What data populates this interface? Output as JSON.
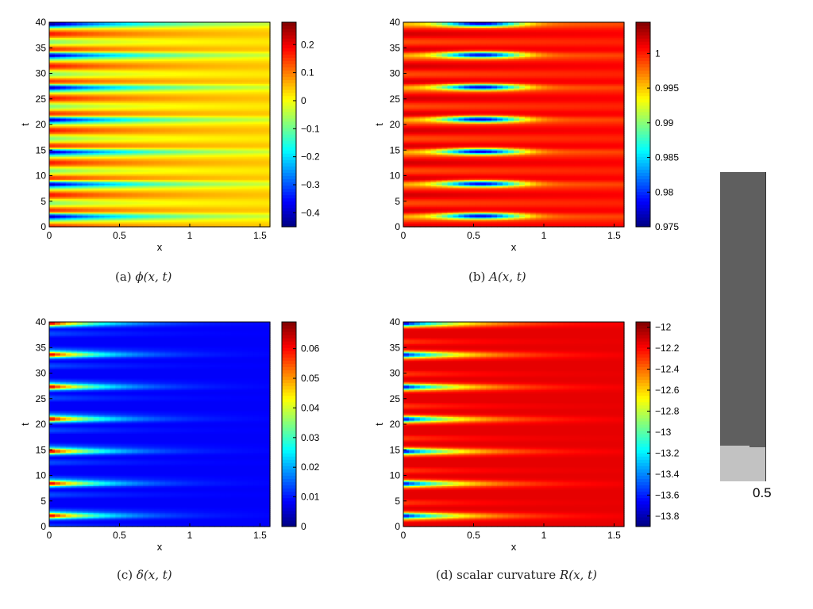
{
  "chart_data": [
    {
      "id": "a",
      "type": "heatmap",
      "caption_prefix": "(a) ",
      "caption_math": "ϕ(x, t)",
      "xlabel": "x",
      "ylabel": "t",
      "xlim": [
        0,
        1.5708
      ],
      "ylim": [
        0,
        40
      ],
      "xticks": [
        0,
        0.5,
        1,
        1.5
      ],
      "yticks": [
        0,
        5,
        10,
        15,
        20,
        25,
        30,
        35,
        40
      ],
      "xtick_labels": [
        "0",
        "0.5",
        "1",
        "1.5"
      ],
      "ytick_labels": [
        "0",
        "5",
        "10",
        "15",
        "20",
        "25",
        "30",
        "35",
        "40"
      ],
      "clim": [
        -0.45,
        0.28
      ],
      "colorbar_ticks": [
        0.2,
        0.1,
        0,
        -0.1,
        -0.2,
        -0.3,
        -0.4
      ],
      "colorbar_labels": [
        "0.2",
        "0.1",
        "0",
        "−0.1",
        "−0.2",
        "−0.3",
        "−0.4"
      ],
      "colormap": "jet",
      "pattern": "phi",
      "pulse_times": [
        2.2,
        8.5,
        14.8,
        21.1,
        27.4,
        33.7,
        39.8
      ]
    },
    {
      "id": "b",
      "type": "heatmap",
      "caption_prefix": "(b) ",
      "caption_math": "A(x, t)",
      "xlabel": "x",
      "ylabel": "t",
      "xlim": [
        0,
        1.5708
      ],
      "ylim": [
        0,
        40
      ],
      "xticks": [
        0,
        0.5,
        1,
        1.5
      ],
      "yticks": [
        0,
        5,
        10,
        15,
        20,
        25,
        30,
        35,
        40
      ],
      "xtick_labels": [
        "0",
        "0.5",
        "1",
        "1.5"
      ],
      "ytick_labels": [
        "0",
        "5",
        "10",
        "15",
        "20",
        "25",
        "30",
        "35",
        "40"
      ],
      "clim": [
        0.975,
        1.0045
      ],
      "colorbar_ticks": [
        1,
        0.995,
        0.99,
        0.985,
        0.98,
        0.975
      ],
      "colorbar_labels": [
        "1",
        "0.995",
        "0.99",
        "0.985",
        "0.98",
        "0.975"
      ],
      "colormap": "jet",
      "pattern": "A",
      "pulse_times": [
        2.2,
        8.5,
        14.8,
        21.1,
        27.4,
        33.7,
        39.8
      ]
    },
    {
      "id": "c",
      "type": "heatmap",
      "caption_prefix": "(c) ",
      "caption_math": "δ(x, t)",
      "xlabel": "x",
      "ylabel": "t",
      "xlim": [
        0,
        1.5708
      ],
      "ylim": [
        0,
        40
      ],
      "xticks": [
        0,
        0.5,
        1,
        1.5
      ],
      "yticks": [
        0,
        5,
        10,
        15,
        20,
        25,
        30,
        35,
        40
      ],
      "xtick_labels": [
        "0",
        "0.5",
        "1",
        "1.5"
      ],
      "ytick_labels": [
        "0",
        "5",
        "10",
        "15",
        "20",
        "25",
        "30",
        "35",
        "40"
      ],
      "clim": [
        0,
        0.069
      ],
      "colorbar_ticks": [
        0.06,
        0.05,
        0.04,
        0.03,
        0.02,
        0.01,
        0
      ],
      "colorbar_labels": [
        "0.06",
        "0.05",
        "0.04",
        "0.03",
        "0.02",
        "0.01",
        "0"
      ],
      "colormap": "jet",
      "pattern": "delta",
      "pulse_times": [
        2.2,
        8.5,
        14.8,
        21.1,
        27.4,
        33.7,
        39.8
      ]
    },
    {
      "id": "d",
      "type": "heatmap",
      "caption_prefix": "(d) scalar curvature ",
      "caption_math": "R(x, t)",
      "xlabel": "x",
      "ylabel": "t",
      "xlim": [
        0,
        1.5708
      ],
      "ylim": [
        0,
        40
      ],
      "xticks": [
        0,
        0.5,
        1,
        1.5
      ],
      "yticks": [
        0,
        5,
        10,
        15,
        20,
        25,
        30,
        35,
        40
      ],
      "xtick_labels": [
        "0",
        "0.5",
        "1",
        "1.5"
      ],
      "ytick_labels": [
        "0",
        "5",
        "10",
        "15",
        "20",
        "25",
        "30",
        "35",
        "40"
      ],
      "clim": [
        -13.9,
        -11.95
      ],
      "colorbar_ticks": [
        -12,
        -12.2,
        -12.4,
        -12.6,
        -12.8,
        -13,
        -13.2,
        -13.4,
        -13.6,
        -13.8
      ],
      "colorbar_labels": [
        "−12",
        "−12.2",
        "−12.4",
        "−12.6",
        "−12.8",
        "−13",
        "−13.2",
        "−13.4",
        "−13.6",
        "−13.8"
      ],
      "colormap": "jet",
      "pattern": "R",
      "pulse_times": [
        2.2,
        8.5,
        14.8,
        21.1,
        27.4,
        33.7,
        39.8
      ]
    }
  ],
  "side_scale": {
    "label": "0.5",
    "dark_color": "#5f5f5f",
    "light_color": "#c2c2c2"
  }
}
